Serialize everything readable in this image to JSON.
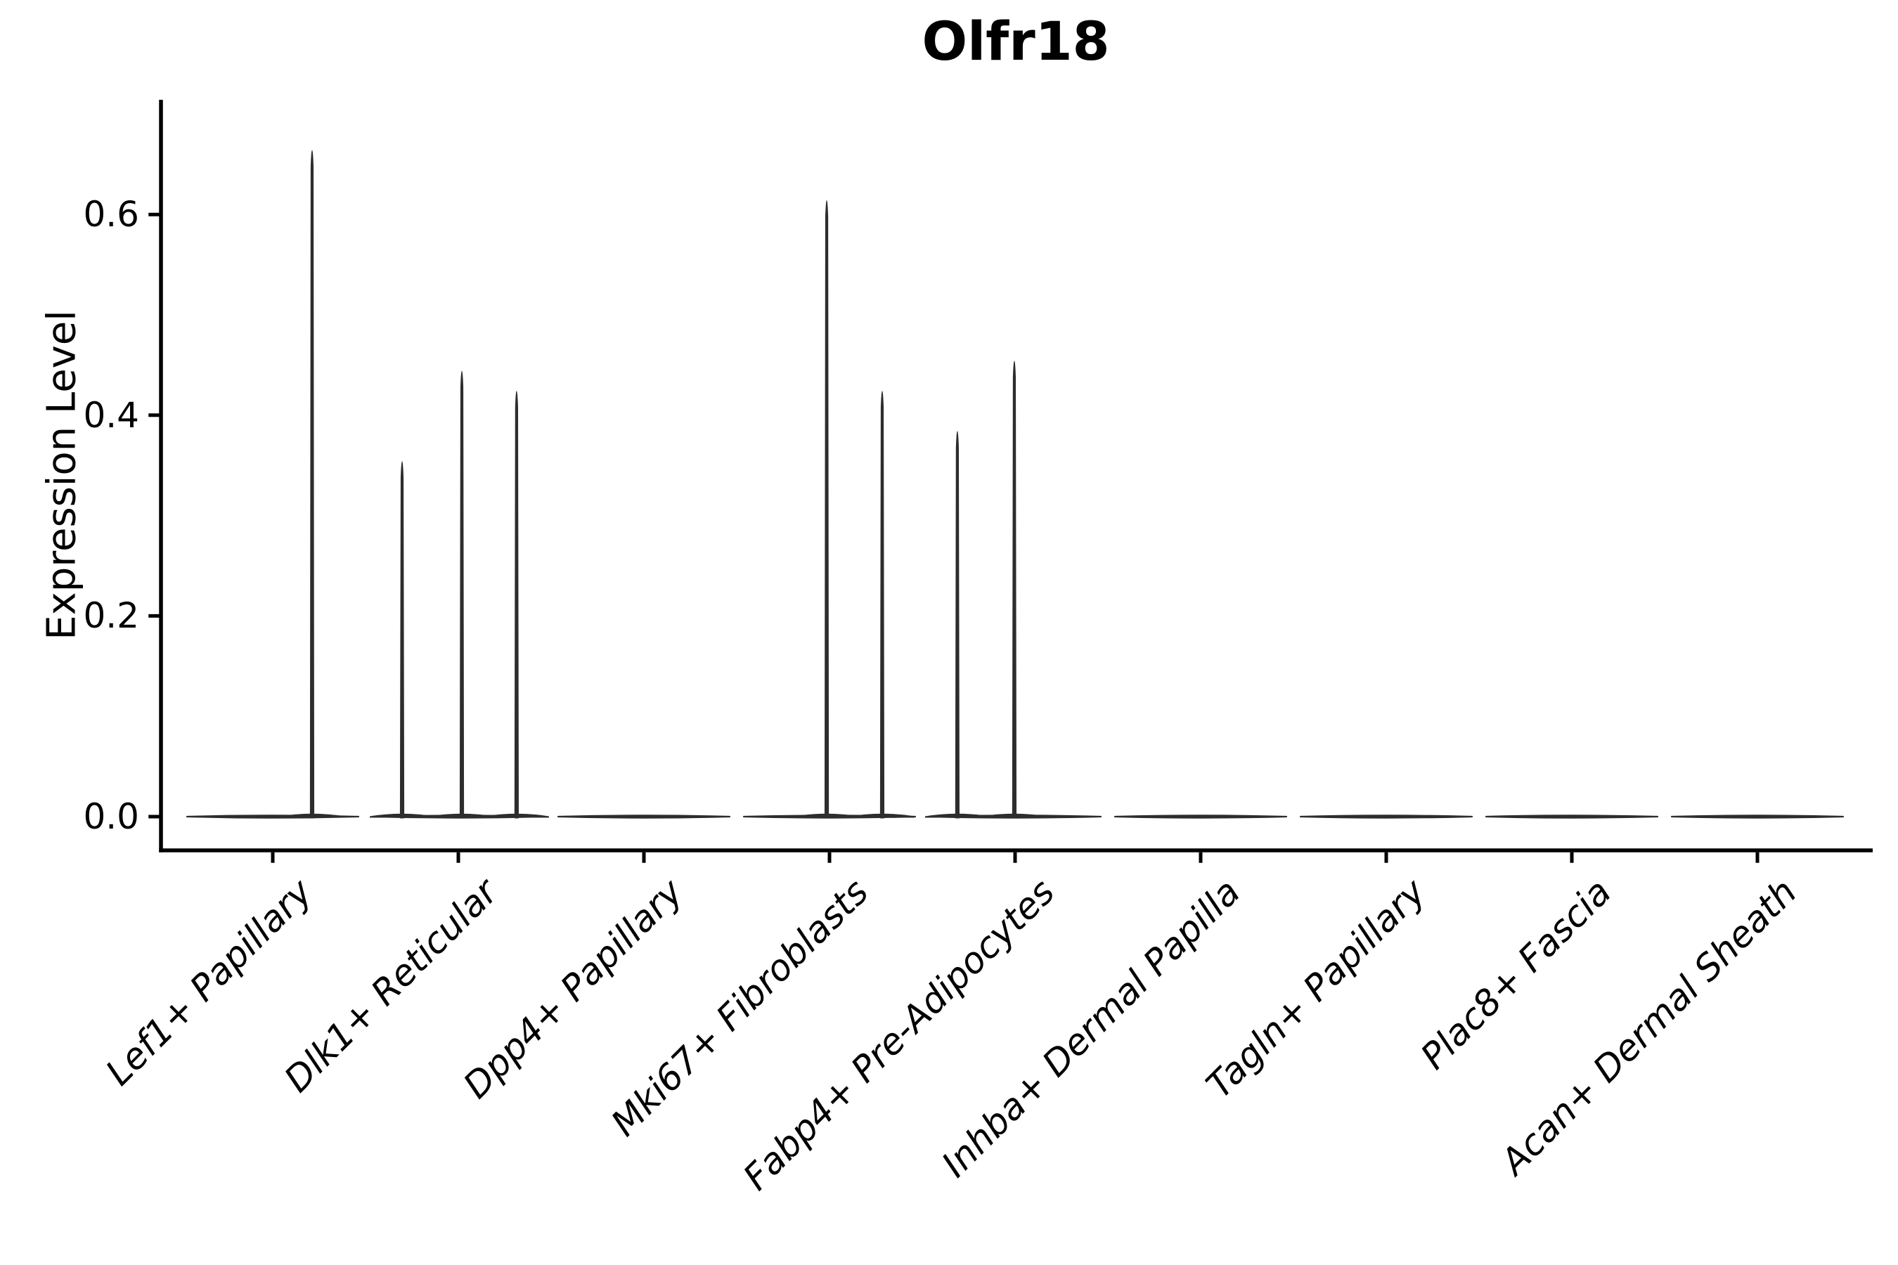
{
  "title": "Olfr18",
  "y_axis": {
    "label": "Expression Level",
    "tick_labels": [
      "0.0",
      "0.2",
      "0.4",
      "0.6"
    ]
  },
  "chart_data": {
    "type": "violin",
    "title": "Olfr18",
    "xlabel": "",
    "ylabel": "Expression Level",
    "ylim": [
      -0.034,
      0.714
    ],
    "yticks": [
      0.0,
      0.2,
      0.4,
      0.6
    ],
    "grid": false,
    "legend": "none",
    "categories": [
      "Lef1+ Papillary",
      "Dlk1+ Reticular",
      "Dpp4+ Papillary",
      "Mki67+ Fibroblasts",
      "Fabp4+ Pre-Adipocytes",
      "Inhba+ Dermal Papilla",
      "Tagln+ Papillary",
      "Plac8+ Fascia",
      "Acan+ Dermal Sheath"
    ],
    "description": "Each cell type shows a flat violin concentrated at expression 0; some categories contain narrow spike violins (sub-violins offset within the category, offset_frac of category spacing) reaching the peak expression values listed.",
    "violins": [
      {
        "category": "Lef1+ Papillary",
        "baseline_value": 0.0,
        "spikes": [
          {
            "offset_frac": 0.212,
            "peak": 0.68
          }
        ]
      },
      {
        "category": "Dlk1+ Reticular",
        "baseline_value": 0.0,
        "spikes": [
          {
            "offset_frac": -0.303,
            "peak": 0.37
          },
          {
            "offset_frac": 0.019,
            "peak": 0.46
          },
          {
            "offset_frac": 0.314,
            "peak": 0.44
          }
        ]
      },
      {
        "category": "Dpp4+ Papillary",
        "baseline_value": 0.0,
        "spikes": []
      },
      {
        "category": "Mki67+ Fibroblasts",
        "baseline_value": 0.0,
        "spikes": [
          {
            "offset_frac": -0.015,
            "peak": 0.63
          },
          {
            "offset_frac": 0.284,
            "peak": 0.44
          }
        ]
      },
      {
        "category": "Fabp4+ Pre-Adipocytes",
        "baseline_value": 0.0,
        "spikes": [
          {
            "offset_frac": -0.311,
            "peak": 0.4
          },
          {
            "offset_frac": -0.004,
            "peak": 0.47
          }
        ]
      },
      {
        "category": "Inhba+ Dermal Papilla",
        "baseline_value": 0.0,
        "spikes": []
      },
      {
        "category": "Tagln+ Papillary",
        "baseline_value": 0.0,
        "spikes": []
      },
      {
        "category": "Plac8+ Fascia",
        "baseline_value": 0.0,
        "spikes": []
      },
      {
        "category": "Acan+ Dermal Sheath",
        "baseline_value": 0.0,
        "spikes": []
      }
    ],
    "colors": {
      "violin": "#2d2d2d",
      "axis": "#000000",
      "text": "#000000",
      "background": "#ffffff"
    }
  }
}
